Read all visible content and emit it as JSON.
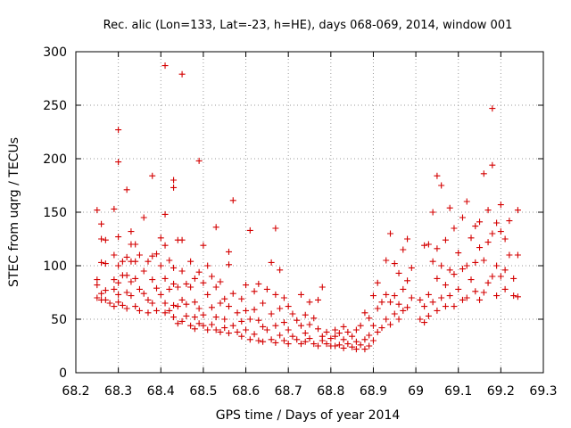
{
  "chart_data": {
    "type": "scatter",
    "title": "Rec. alic (Lon=133, Lat=-23, h=HE), days 068-069, 2014, window 001",
    "xlabel": "GPS time / Days of year 2014",
    "ylabel": "STEC from uqrg / TECUs",
    "xlim": [
      68.2,
      69.3
    ],
    "ylim": [
      0,
      300
    ],
    "xticks": [
      "68.2",
      "68.3",
      "68.4",
      "68.5",
      "68.6",
      "68.7",
      "68.8",
      "68.9",
      "69",
      "69.1",
      "69.2",
      "69.3"
    ],
    "yticks": [
      "0",
      "50",
      "100",
      "150",
      "200",
      "250",
      "300"
    ],
    "grid": true,
    "marker": "+",
    "color": "#d40000",
    "points": [
      [
        68.25,
        152
      ],
      [
        68.25,
        87
      ],
      [
        68.25,
        82
      ],
      [
        68.25,
        70
      ],
      [
        68.26,
        139
      ],
      [
        68.26,
        125
      ],
      [
        68.26,
        103
      ],
      [
        68.26,
        74
      ],
      [
        68.26,
        68
      ],
      [
        68.27,
        124
      ],
      [
        68.27,
        102
      ],
      [
        68.27,
        77
      ],
      [
        68.27,
        68
      ],
      [
        68.28,
        65
      ],
      [
        68.29,
        153
      ],
      [
        68.29,
        110
      ],
      [
        68.29,
        87
      ],
      [
        68.29,
        78
      ],
      [
        68.29,
        62
      ],
      [
        68.3,
        227
      ],
      [
        68.3,
        197
      ],
      [
        68.3,
        127
      ],
      [
        68.3,
        100
      ],
      [
        68.3,
        84
      ],
      [
        68.3,
        73
      ],
      [
        68.3,
        66
      ],
      [
        68.31,
        104
      ],
      [
        68.31,
        91
      ],
      [
        68.31,
        63
      ],
      [
        68.32,
        171
      ],
      [
        68.32,
        108
      ],
      [
        68.32,
        91
      ],
      [
        68.32,
        75
      ],
      [
        68.32,
        60
      ],
      [
        68.33,
        132
      ],
      [
        68.33,
        120
      ],
      [
        68.33,
        104
      ],
      [
        68.33,
        85
      ],
      [
        68.33,
        72
      ],
      [
        68.34,
        120
      ],
      [
        68.34,
        104
      ],
      [
        68.34,
        88
      ],
      [
        68.34,
        62
      ],
      [
        68.35,
        110
      ],
      [
        68.35,
        78
      ],
      [
        68.35,
        58
      ],
      [
        68.36,
        145
      ],
      [
        68.36,
        95
      ],
      [
        68.36,
        74
      ],
      [
        68.37,
        104
      ],
      [
        68.37,
        68
      ],
      [
        68.37,
        56
      ],
      [
        68.38,
        184
      ],
      [
        68.38,
        109
      ],
      [
        68.38,
        87
      ],
      [
        68.38,
        65
      ],
      [
        68.39,
        111
      ],
      [
        68.39,
        79
      ],
      [
        68.39,
        58
      ],
      [
        68.4,
        126
      ],
      [
        68.4,
        100
      ],
      [
        68.4,
        73
      ],
      [
        68.41,
        287
      ],
      [
        68.41,
        148
      ],
      [
        68.41,
        119
      ],
      [
        68.41,
        88
      ],
      [
        68.41,
        65
      ],
      [
        68.41,
        56
      ],
      [
        68.42,
        105
      ],
      [
        68.42,
        78
      ],
      [
        68.42,
        58
      ],
      [
        68.43,
        180
      ],
      [
        68.43,
        173
      ],
      [
        68.43,
        98
      ],
      [
        68.43,
        83
      ],
      [
        68.43,
        63
      ],
      [
        68.43,
        52
      ],
      [
        68.44,
        124
      ],
      [
        68.44,
        80
      ],
      [
        68.44,
        62
      ],
      [
        68.44,
        46
      ],
      [
        68.45,
        279
      ],
      [
        68.45,
        124
      ],
      [
        68.45,
        95
      ],
      [
        68.45,
        68
      ],
      [
        68.45,
        48
      ],
      [
        68.46,
        83
      ],
      [
        68.46,
        64
      ],
      [
        68.46,
        53
      ],
      [
        68.47,
        104
      ],
      [
        68.47,
        80
      ],
      [
        68.47,
        44
      ],
      [
        68.48,
        88
      ],
      [
        68.48,
        66
      ],
      [
        68.48,
        52
      ],
      [
        68.48,
        41
      ],
      [
        68.49,
        198
      ],
      [
        68.49,
        94
      ],
      [
        68.49,
        60
      ],
      [
        68.49,
        46
      ],
      [
        68.5,
        119
      ],
      [
        68.5,
        84
      ],
      [
        68.5,
        54
      ],
      [
        68.5,
        44
      ],
      [
        68.51,
        100
      ],
      [
        68.51,
        73
      ],
      [
        68.51,
        40
      ],
      [
        68.52,
        90
      ],
      [
        68.52,
        61
      ],
      [
        68.52,
        45
      ],
      [
        68.53,
        136
      ],
      [
        68.53,
        80
      ],
      [
        68.53,
        52
      ],
      [
        68.53,
        40
      ],
      [
        68.54,
        85
      ],
      [
        68.54,
        65
      ],
      [
        68.54,
        38
      ],
      [
        68.55,
        69
      ],
      [
        68.55,
        50
      ],
      [
        68.55,
        42
      ],
      [
        68.56,
        113
      ],
      [
        68.56,
        101
      ],
      [
        68.56,
        62
      ],
      [
        68.56,
        37
      ],
      [
        68.57,
        161
      ],
      [
        68.57,
        74
      ],
      [
        68.57,
        44
      ],
      [
        68.58,
        56
      ],
      [
        68.58,
        38
      ],
      [
        68.59,
        69
      ],
      [
        68.59,
        48
      ],
      [
        68.59,
        34
      ],
      [
        68.6,
        82
      ],
      [
        68.6,
        58
      ],
      [
        68.6,
        40
      ],
      [
        68.61,
        133
      ],
      [
        68.61,
        50
      ],
      [
        68.61,
        31
      ],
      [
        68.62,
        76
      ],
      [
        68.62,
        59
      ],
      [
        68.62,
        36
      ],
      [
        68.63,
        83
      ],
      [
        68.63,
        49
      ],
      [
        68.63,
        30
      ],
      [
        68.64,
        65
      ],
      [
        68.64,
        43
      ],
      [
        68.64,
        29
      ],
      [
        68.65,
        78
      ],
      [
        68.65,
        40
      ],
      [
        68.66,
        103
      ],
      [
        68.66,
        55
      ],
      [
        68.66,
        31
      ],
      [
        68.67,
        135
      ],
      [
        68.67,
        73
      ],
      [
        68.67,
        44
      ],
      [
        68.67,
        28
      ],
      [
        68.68,
        96
      ],
      [
        68.68,
        60
      ],
      [
        68.68,
        35
      ],
      [
        68.69,
        70
      ],
      [
        68.69,
        47
      ],
      [
        68.69,
        30
      ],
      [
        68.7,
        62
      ],
      [
        68.7,
        40
      ],
      [
        68.7,
        27
      ],
      [
        68.71,
        55
      ],
      [
        68.71,
        34
      ],
      [
        68.72,
        49
      ],
      [
        68.72,
        31
      ],
      [
        68.73,
        73
      ],
      [
        68.73,
        44
      ],
      [
        68.73,
        27
      ],
      [
        68.74,
        54
      ],
      [
        68.74,
        37
      ],
      [
        68.74,
        29
      ],
      [
        68.75,
        66
      ],
      [
        68.75,
        45
      ],
      [
        68.75,
        32
      ],
      [
        68.76,
        51
      ],
      [
        68.76,
        27
      ],
      [
        68.77,
        68
      ],
      [
        68.77,
        41
      ],
      [
        68.77,
        25
      ],
      [
        68.78,
        80
      ],
      [
        68.78,
        34
      ],
      [
        68.78,
        30
      ],
      [
        68.79,
        38
      ],
      [
        68.79,
        27
      ],
      [
        68.8,
        32
      ],
      [
        68.8,
        25
      ],
      [
        68.81,
        40
      ],
      [
        68.81,
        34
      ],
      [
        68.81,
        25
      ],
      [
        68.82,
        37
      ],
      [
        68.82,
        26
      ],
      [
        68.83,
        43
      ],
      [
        68.83,
        31
      ],
      [
        68.83,
        23
      ],
      [
        68.84,
        38
      ],
      [
        68.84,
        27
      ],
      [
        68.85,
        34
      ],
      [
        68.85,
        24
      ],
      [
        68.86,
        40
      ],
      [
        68.86,
        29
      ],
      [
        68.86,
        22
      ],
      [
        68.87,
        44
      ],
      [
        68.87,
        26
      ],
      [
        68.88,
        56
      ],
      [
        68.88,
        31
      ],
      [
        68.88,
        22
      ],
      [
        68.89,
        51
      ],
      [
        68.89,
        35
      ],
      [
        68.89,
        25
      ],
      [
        68.9,
        72
      ],
      [
        68.9,
        44
      ],
      [
        68.9,
        30
      ],
      [
        68.91,
        84
      ],
      [
        68.91,
        60
      ],
      [
        68.91,
        38
      ],
      [
        68.92,
        66
      ],
      [
        68.92,
        42
      ],
      [
        68.93,
        105
      ],
      [
        68.93,
        73
      ],
      [
        68.93,
        50
      ],
      [
        68.94,
        130
      ],
      [
        68.94,
        66
      ],
      [
        68.94,
        45
      ],
      [
        68.95,
        102
      ],
      [
        68.95,
        72
      ],
      [
        68.95,
        55
      ],
      [
        68.96,
        93
      ],
      [
        68.96,
        64
      ],
      [
        68.96,
        50
      ],
      [
        68.97,
        115
      ],
      [
        68.97,
        78
      ],
      [
        68.97,
        58
      ],
      [
        68.98,
        125
      ],
      [
        68.98,
        86
      ],
      [
        68.98,
        61
      ],
      [
        68.99,
        98
      ],
      [
        68.99,
        70
      ],
      [
        69.01,
        68
      ],
      [
        69.01,
        50
      ],
      [
        69.02,
        119
      ],
      [
        69.02,
        62
      ],
      [
        69.02,
        47
      ],
      [
        69.03,
        120
      ],
      [
        69.03,
        73
      ],
      [
        69.03,
        53
      ],
      [
        69.04,
        150
      ],
      [
        69.04,
        104
      ],
      [
        69.04,
        66
      ],
      [
        69.05,
        184
      ],
      [
        69.05,
        116
      ],
      [
        69.05,
        88
      ],
      [
        69.05,
        58
      ],
      [
        69.06,
        175
      ],
      [
        69.06,
        100
      ],
      [
        69.06,
        70
      ],
      [
        69.07,
        124
      ],
      [
        69.07,
        82
      ],
      [
        69.07,
        62
      ],
      [
        69.08,
        154
      ],
      [
        69.08,
        96
      ],
      [
        69.08,
        72
      ],
      [
        69.09,
        135
      ],
      [
        69.09,
        92
      ],
      [
        69.09,
        62
      ],
      [
        69.1,
        112
      ],
      [
        69.1,
        78
      ],
      [
        69.11,
        145
      ],
      [
        69.11,
        97
      ],
      [
        69.11,
        68
      ],
      [
        69.12,
        160
      ],
      [
        69.12,
        100
      ],
      [
        69.12,
        70
      ],
      [
        69.13,
        126
      ],
      [
        69.13,
        87
      ],
      [
        69.14,
        137
      ],
      [
        69.14,
        103
      ],
      [
        69.14,
        76
      ],
      [
        69.15,
        141
      ],
      [
        69.15,
        117
      ],
      [
        69.15,
        68
      ],
      [
        69.16,
        186
      ],
      [
        69.16,
        105
      ],
      [
        69.16,
        75
      ],
      [
        69.17,
        152
      ],
      [
        69.17,
        122
      ],
      [
        69.17,
        84
      ],
      [
        69.18,
        247
      ],
      [
        69.18,
        194
      ],
      [
        69.18,
        130
      ],
      [
        69.18,
        90
      ],
      [
        69.19,
        140
      ],
      [
        69.19,
        100
      ],
      [
        69.19,
        72
      ],
      [
        69.2,
        157
      ],
      [
        69.2,
        132
      ],
      [
        69.2,
        90
      ],
      [
        69.21,
        125
      ],
      [
        69.21,
        96
      ],
      [
        69.21,
        78
      ],
      [
        69.22,
        142
      ],
      [
        69.22,
        110
      ],
      [
        69.23,
        88
      ],
      [
        69.23,
        72
      ],
      [
        69.24,
        152
      ],
      [
        69.24,
        110
      ],
      [
        69.24,
        71
      ]
    ]
  }
}
